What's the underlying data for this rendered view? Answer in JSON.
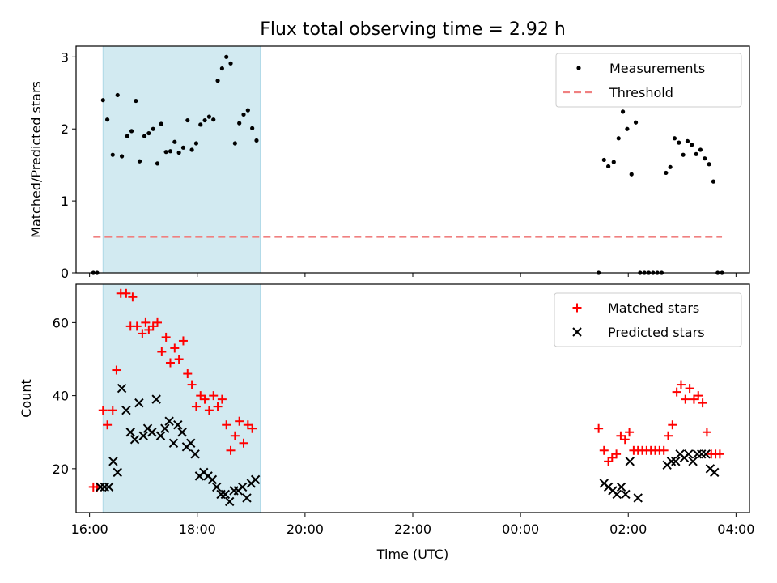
{
  "chart_data": {
    "title": "Flux total observing time = 2.92 h",
    "type": "scatter",
    "xlabel": "Time (UTC)",
    "x_unit": "hours since 16:00 UTC",
    "xlim": [
      -0.25,
      12.25
    ],
    "x_ticks": [
      {
        "x": 0,
        "label": "16:00"
      },
      {
        "x": 2,
        "label": "18:00"
      },
      {
        "x": 4,
        "label": "20:00"
      },
      {
        "x": 6,
        "label": "22:00"
      },
      {
        "x": 8,
        "label": "00:00"
      },
      {
        "x": 10,
        "label": "02:00"
      },
      {
        "x": 12,
        "label": "04:00"
      }
    ],
    "observing_window": {
      "x_start": 0.25,
      "x_end": 3.17,
      "color": "#add8e6"
    },
    "panels": [
      {
        "id": "ratio",
        "ylabel": "Matched/Predicted stars",
        "ylim": [
          0,
          3.15
        ],
        "y_ticks": [
          0,
          1,
          2,
          3
        ],
        "legend": "top-right",
        "series": [
          {
            "name": "Measurements",
            "kind": "dot",
            "color": "#000000",
            "points": [
              [
                0.07,
                0
              ],
              [
                0.14,
                0
              ],
              [
                0.25,
                2.4
              ],
              [
                0.33,
                2.13
              ],
              [
                0.43,
                1.64
              ],
              [
                0.52,
                2.47
              ],
              [
                0.6,
                1.62
              ],
              [
                0.7,
                1.9
              ],
              [
                0.78,
                1.97
              ],
              [
                0.86,
                2.39
              ],
              [
                0.93,
                1.55
              ],
              [
                1.02,
                1.9
              ],
              [
                1.1,
                1.94
              ],
              [
                1.18,
                2.0
              ],
              [
                1.26,
                1.52
              ],
              [
                1.33,
                2.07
              ],
              [
                1.42,
                1.68
              ],
              [
                1.5,
                1.69
              ],
              [
                1.58,
                1.82
              ],
              [
                1.66,
                1.67
              ],
              [
                1.74,
                1.74
              ],
              [
                1.82,
                2.12
              ],
              [
                1.9,
                1.71
              ],
              [
                1.98,
                1.8
              ],
              [
                2.06,
                2.06
              ],
              [
                2.14,
                2.12
              ],
              [
                2.22,
                2.17
              ],
              [
                2.3,
                2.13
              ],
              [
                2.38,
                2.67
              ],
              [
                2.46,
                2.84
              ],
              [
                2.54,
                3.0
              ],
              [
                2.62,
                2.91
              ],
              [
                2.7,
                1.8
              ],
              [
                2.78,
                2.08
              ],
              [
                2.86,
                2.2
              ],
              [
                2.94,
                2.26
              ],
              [
                3.02,
                2.01
              ],
              [
                3.1,
                1.84
              ],
              [
                9.45,
                0
              ],
              [
                9.55,
                1.57
              ],
              [
                9.63,
                1.48
              ],
              [
                9.73,
                1.54
              ],
              [
                9.82,
                1.87
              ],
              [
                9.9,
                2.24
              ],
              [
                9.98,
                2.0
              ],
              [
                10.06,
                1.37
              ],
              [
                10.14,
                2.09
              ],
              [
                10.22,
                0
              ],
              [
                10.3,
                0
              ],
              [
                10.38,
                0
              ],
              [
                10.46,
                0
              ],
              [
                10.54,
                0
              ],
              [
                10.62,
                0
              ],
              [
                10.7,
                1.39
              ],
              [
                10.78,
                1.47
              ],
              [
                10.86,
                1.87
              ],
              [
                10.94,
                1.81
              ],
              [
                11.02,
                1.64
              ],
              [
                11.1,
                1.83
              ],
              [
                11.18,
                1.78
              ],
              [
                11.26,
                1.65
              ],
              [
                11.34,
                1.71
              ],
              [
                11.42,
                1.59
              ],
              [
                11.5,
                1.51
              ],
              [
                11.58,
                1.27
              ],
              [
                11.66,
                0
              ],
              [
                11.74,
                0
              ]
            ]
          },
          {
            "name": "Threshold",
            "kind": "dashed-line",
            "color": "#f08080",
            "points": [
              [
                0.07,
                0.5
              ],
              [
                11.74,
                0.5
              ]
            ]
          }
        ]
      },
      {
        "id": "counts",
        "ylabel": "Count",
        "ylim": [
          8,
          70.5
        ],
        "y_ticks": [
          20,
          40,
          60
        ],
        "legend": "top-right",
        "series": [
          {
            "name": "Matched stars",
            "kind": "plus",
            "color": "#ff0000",
            "points": [
              [
                0.07,
                15
              ],
              [
                0.14,
                15
              ],
              [
                0.25,
                36
              ],
              [
                0.33,
                32
              ],
              [
                0.43,
                36
              ],
              [
                0.5,
                47
              ],
              [
                0.58,
                68
              ],
              [
                0.68,
                68
              ],
              [
                0.8,
                67
              ],
              [
                0.76,
                59
              ],
              [
                0.88,
                59
              ],
              [
                0.98,
                57
              ],
              [
                1.04,
                60
              ],
              [
                1.1,
                58
              ],
              [
                1.18,
                59
              ],
              [
                1.26,
                60
              ],
              [
                1.34,
                52
              ],
              [
                1.42,
                56
              ],
              [
                1.5,
                49
              ],
              [
                1.58,
                53
              ],
              [
                1.66,
                50
              ],
              [
                1.74,
                55
              ],
              [
                1.82,
                46
              ],
              [
                1.9,
                43
              ],
              [
                1.98,
                37
              ],
              [
                2.06,
                40
              ],
              [
                2.14,
                39
              ],
              [
                2.22,
                36
              ],
              [
                2.3,
                40
              ],
              [
                2.38,
                37
              ],
              [
                2.46,
                39
              ],
              [
                2.54,
                32
              ],
              [
                2.62,
                25
              ],
              [
                2.7,
                29
              ],
              [
                2.78,
                33
              ],
              [
                2.86,
                27
              ],
              [
                2.94,
                32
              ],
              [
                3.02,
                31
              ],
              [
                9.45,
                31
              ],
              [
                9.55,
                25
              ],
              [
                9.63,
                22
              ],
              [
                9.7,
                23
              ],
              [
                9.78,
                24
              ],
              [
                9.86,
                29
              ],
              [
                9.94,
                28
              ],
              [
                10.02,
                30
              ],
              [
                10.1,
                25
              ],
              [
                10.18,
                25
              ],
              [
                10.26,
                25
              ],
              [
                10.34,
                25
              ],
              [
                10.42,
                25
              ],
              [
                10.5,
                25
              ],
              [
                10.58,
                25
              ],
              [
                10.66,
                25
              ],
              [
                10.74,
                29
              ],
              [
                10.82,
                32
              ],
              [
                10.9,
                41
              ],
              [
                10.98,
                43
              ],
              [
                11.06,
                39
              ],
              [
                11.14,
                42
              ],
              [
                11.22,
                39
              ],
              [
                11.3,
                40
              ],
              [
                11.38,
                38
              ],
              [
                11.46,
                30
              ],
              [
                11.54,
                24
              ],
              [
                11.62,
                24
              ],
              [
                11.7,
                24
              ]
            ]
          },
          {
            "name": "Predicted stars",
            "kind": "cross",
            "color": "#000000",
            "points": [
              [
                0.2,
                15
              ],
              [
                0.28,
                15
              ],
              [
                0.36,
                15
              ],
              [
                0.44,
                22
              ],
              [
                0.52,
                19
              ],
              [
                0.6,
                42
              ],
              [
                0.68,
                36
              ],
              [
                0.76,
                30
              ],
              [
                0.84,
                28
              ],
              [
                0.92,
                38
              ],
              [
                1.0,
                29
              ],
              [
                1.08,
                31
              ],
              [
                1.16,
                30
              ],
              [
                1.24,
                39
              ],
              [
                1.32,
                29
              ],
              [
                1.4,
                31
              ],
              [
                1.48,
                33
              ],
              [
                1.56,
                27
              ],
              [
                1.64,
                32
              ],
              [
                1.72,
                30
              ],
              [
                1.8,
                26
              ],
              [
                1.88,
                27
              ],
              [
                1.96,
                24
              ],
              [
                2.04,
                18
              ],
              [
                2.12,
                19
              ],
              [
                2.2,
                18
              ],
              [
                2.28,
                17
              ],
              [
                2.36,
                15
              ],
              [
                2.44,
                13
              ],
              [
                2.52,
                13
              ],
              [
                2.6,
                11
              ],
              [
                2.68,
                14
              ],
              [
                2.76,
                14
              ],
              [
                2.84,
                15
              ],
              [
                2.92,
                12
              ],
              [
                3.0,
                16
              ],
              [
                3.08,
                17
              ],
              [
                9.55,
                16
              ],
              [
                9.63,
                15
              ],
              [
                9.71,
                14
              ],
              [
                9.79,
                13
              ],
              [
                9.87,
                15
              ],
              [
                9.95,
                13
              ],
              [
                10.03,
                22
              ],
              [
                10.18,
                12
              ],
              [
                10.72,
                21
              ],
              [
                10.8,
                22
              ],
              [
                10.88,
                22
              ],
              [
                10.96,
                24
              ],
              [
                11.04,
                23
              ],
              [
                11.12,
                24
              ],
              [
                11.2,
                22
              ],
              [
                11.28,
                24
              ],
              [
                11.36,
                24
              ],
              [
                11.44,
                24
              ],
              [
                11.52,
                20
              ],
              [
                11.6,
                19
              ]
            ]
          }
        ]
      }
    ]
  }
}
